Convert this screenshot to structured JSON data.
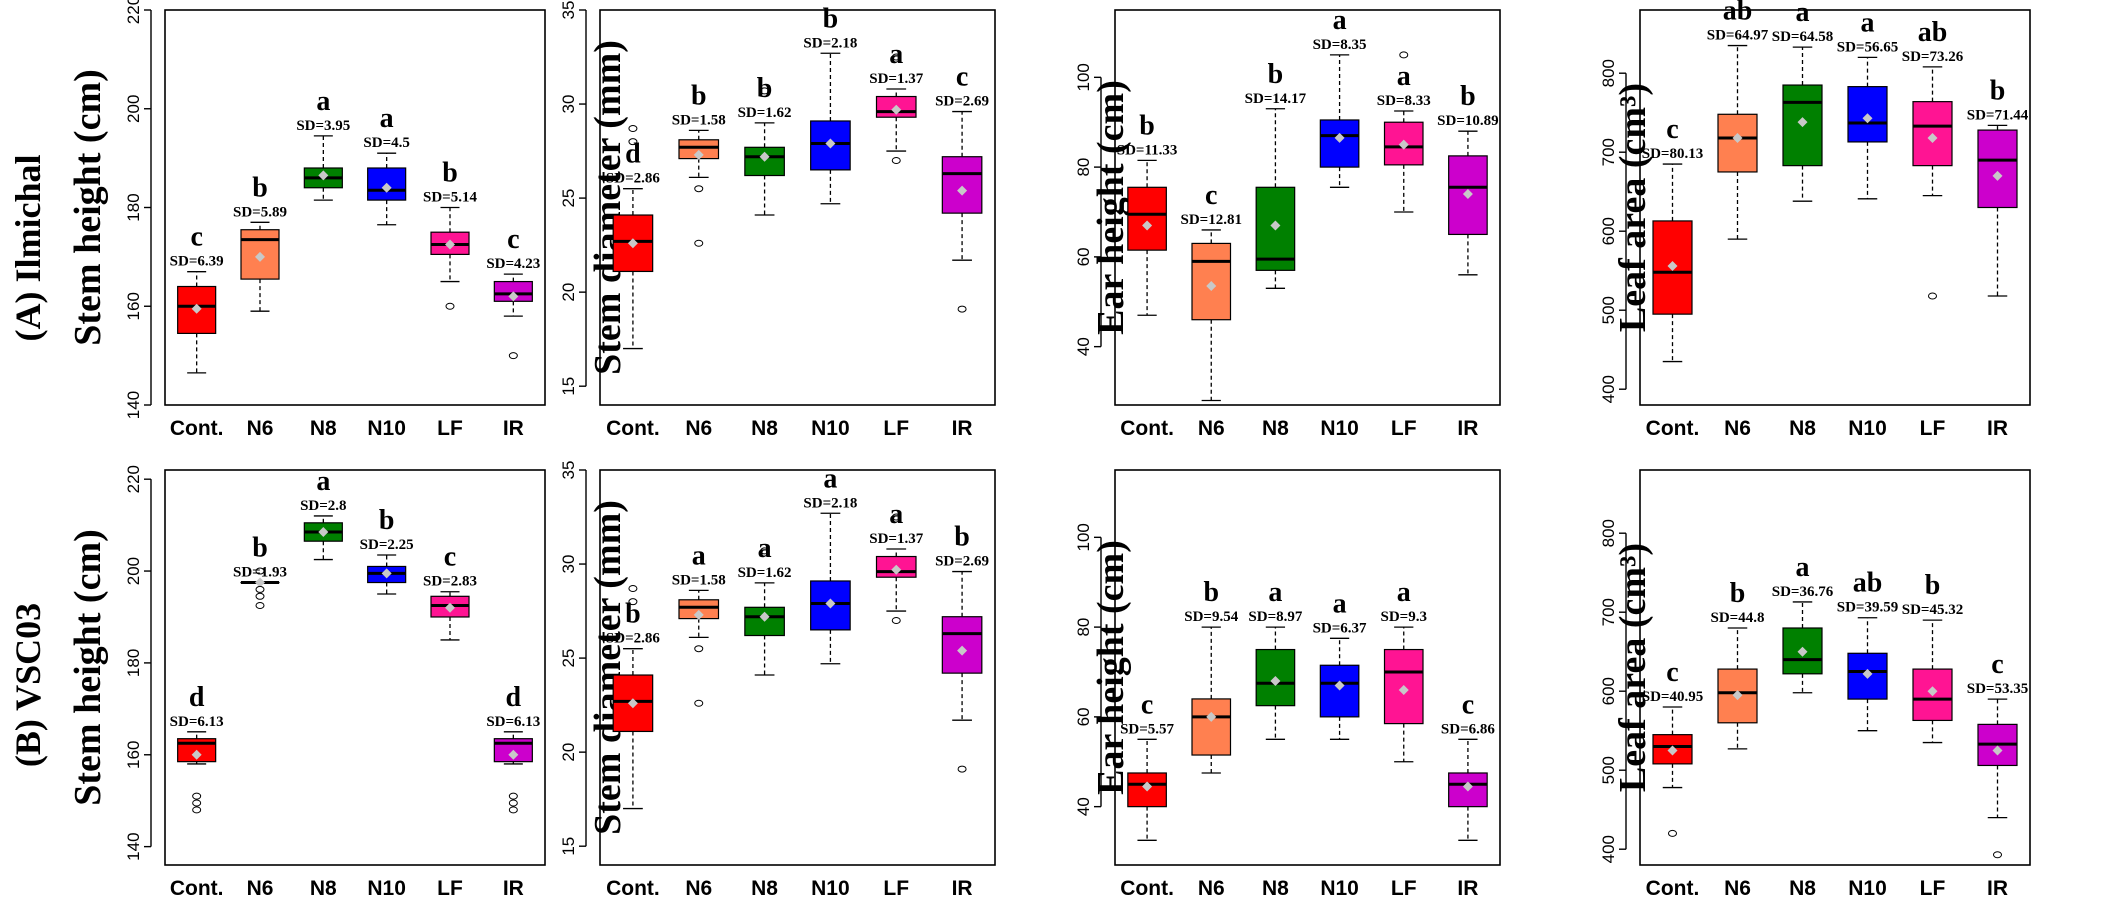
{
  "row_labels": [
    "(A) Ilmichal",
    "(B) VSC03"
  ],
  "colors": {
    "Cont.": "#ff0000",
    "N6": "#ff8050",
    "N8": "#008000",
    "N10": "#0000ff",
    "LF": "#ff1493",
    "IR": "#cc00cc",
    "mean": "#c8c8c8"
  },
  "chart_data": [
    {
      "type": "box",
      "title": "",
      "ylabel": "Stem height (cm)",
      "ylim": [
        140,
        220
      ],
      "yticks": [
        140,
        160,
        180,
        200,
        220
      ],
      "categories": [
        "Cont.",
        "N6",
        "N8",
        "N10",
        "LF",
        "IR"
      ],
      "boxes": [
        {
          "whislo": 146.5,
          "q1": 154.5,
          "med": 160,
          "q3": 164,
          "whishi": 167,
          "mean": 159.5,
          "fliers": [],
          "sd_label": "SD=6.39",
          "letter": "c"
        },
        {
          "whislo": 159,
          "q1": 165.5,
          "med": 173.5,
          "q3": 175.5,
          "whishi": 177,
          "mean": 170,
          "fliers": [],
          "sd_label": "SD=5.89",
          "letter": "b"
        },
        {
          "whislo": 181.5,
          "q1": 184,
          "med": 186,
          "q3": 188,
          "whishi": 194.5,
          "mean": 186.5,
          "fliers": [],
          "sd_label": "SD=3.95",
          "letter": "a"
        },
        {
          "whislo": 176.5,
          "q1": 181.5,
          "med": 183.5,
          "q3": 188,
          "whishi": 191,
          "mean": 184,
          "fliers": [],
          "sd_label": "SD=4.5",
          "letter": "a"
        },
        {
          "whislo": 165,
          "q1": 170.5,
          "med": 172.5,
          "q3": 175,
          "whishi": 180,
          "mean": 172.5,
          "fliers": [
            160
          ],
          "sd_label": "SD=5.14",
          "letter": "b"
        },
        {
          "whislo": 158,
          "q1": 161,
          "med": 162.5,
          "q3": 165,
          "whishi": 166.5,
          "mean": 162,
          "fliers": [
            150
          ],
          "sd_label": "SD=4.23",
          "letter": "c"
        }
      ]
    },
    {
      "type": "box",
      "title": "",
      "ylabel": "Stem diameter (mm)",
      "ylim": [
        14,
        35
      ],
      "yticks": [
        15,
        20,
        25,
        30,
        35
      ],
      "categories": [
        "Cont.",
        "N6",
        "N8",
        "N10",
        "LF",
        "IR"
      ],
      "boxes": [
        {
          "whislo": 17,
          "q1": 21.1,
          "med": 22.7,
          "q3": 24.1,
          "whishi": 25.5,
          "mean": 22.6,
          "fliers": [
            28,
            28.7
          ],
          "sd_label": "SD=2.86",
          "letter": "d"
        },
        {
          "whislo": 26.1,
          "q1": 27.1,
          "med": 27.7,
          "q3": 28.1,
          "whishi": 28.6,
          "mean": 27.3,
          "fliers": [
            22.6,
            25.5
          ],
          "sd_label": "SD=1.58",
          "letter": "b"
        },
        {
          "whislo": 24.1,
          "q1": 26.2,
          "med": 27.2,
          "q3": 27.7,
          "whishi": 29,
          "mean": 27.2,
          "fliers": [
            30.7
          ],
          "sd_label": "SD=1.62",
          "letter": "b"
        },
        {
          "whislo": 24.7,
          "q1": 26.5,
          "med": 27.9,
          "q3": 29.1,
          "whishi": 32.7,
          "mean": 27.9,
          "fliers": [],
          "sd_label": "SD=2.18",
          "letter": "b"
        },
        {
          "whislo": 27.5,
          "q1": 29.3,
          "med": 29.6,
          "q3": 30.4,
          "whishi": 30.8,
          "mean": 29.7,
          "fliers": [
            27,
            32.5
          ],
          "sd_label": "SD=1.37",
          "letter": "a"
        },
        {
          "whislo": 21.7,
          "q1": 24.2,
          "med": 26.3,
          "q3": 27.2,
          "whishi": 29.6,
          "mean": 25.4,
          "fliers": [
            19.1
          ],
          "sd_label": "SD=2.69",
          "letter": "c"
        }
      ]
    },
    {
      "type": "box",
      "title": "",
      "ylabel": "Ear height (cm)",
      "ylim": [
        27,
        115
      ],
      "yticks": [
        40,
        60,
        80,
        100
      ],
      "categories": [
        "Cont.",
        "N6",
        "N8",
        "N10",
        "LF",
        "IR"
      ],
      "boxes": [
        {
          "whislo": 47,
          "q1": 61.5,
          "med": 69.5,
          "q3": 75.5,
          "whishi": 81.5,
          "mean": 67,
          "fliers": [],
          "sd_label": "SD=11.33",
          "letter": "b"
        },
        {
          "whislo": 28,
          "q1": 46,
          "med": 59,
          "q3": 63,
          "whishi": 66,
          "mean": 53.5,
          "fliers": [],
          "sd_label": "SD=12.81",
          "letter": "c"
        },
        {
          "whislo": 53,
          "q1": 57,
          "med": 59.5,
          "q3": 75.5,
          "whishi": 93,
          "mean": 67,
          "fliers": [],
          "sd_label": "SD=14.17",
          "letter": "b"
        },
        {
          "whislo": 75.5,
          "q1": 80,
          "med": 87,
          "q3": 90.5,
          "whishi": 105,
          "mean": 86.5,
          "fliers": [],
          "sd_label": "SD=8.35",
          "letter": "a"
        },
        {
          "whislo": 70,
          "q1": 80.5,
          "med": 84.5,
          "q3": 90,
          "whishi": 92.5,
          "mean": 85,
          "fliers": [
            105
          ],
          "sd_label": "SD=8.33",
          "letter": "a"
        },
        {
          "whislo": 56,
          "q1": 65,
          "med": 75.5,
          "q3": 82.5,
          "whishi": 88,
          "mean": 74,
          "fliers": [],
          "sd_label": "SD=10.89",
          "letter": "b"
        }
      ]
    },
    {
      "type": "box",
      "title": "",
      "ylabel": "Leaf area (cm³)",
      "ylim": [
        380,
        880
      ],
      "yticks": [
        400,
        500,
        600,
        700,
        800
      ],
      "categories": [
        "Cont.",
        "N6",
        "N8",
        "N10",
        "LF",
        "IR"
      ],
      "boxes": [
        {
          "whislo": 435,
          "q1": 495,
          "med": 548,
          "q3": 613,
          "whishi": 685,
          "mean": 556,
          "fliers": [],
          "sd_label": "SD=80.13",
          "letter": "c"
        },
        {
          "whislo": 590,
          "q1": 675,
          "med": 718,
          "q3": 748,
          "whishi": 835,
          "mean": 718,
          "fliers": [],
          "sd_label": "SD=64.97",
          "letter": "ab"
        },
        {
          "whislo": 638,
          "q1": 683,
          "med": 763,
          "q3": 785,
          "whishi": 833,
          "mean": 738,
          "fliers": [],
          "sd_label": "SD=64.58",
          "letter": "a"
        },
        {
          "whislo": 641,
          "q1": 713,
          "med": 737,
          "q3": 783,
          "whishi": 820,
          "mean": 743,
          "fliers": [],
          "sd_label": "SD=56.65",
          "letter": "a"
        },
        {
          "whislo": 645,
          "q1": 683,
          "med": 733,
          "q3": 764,
          "whishi": 808,
          "mean": 718,
          "fliers": [
            518
          ],
          "sd_label": "SD=73.26",
          "letter": "ab"
        },
        {
          "whislo": 518,
          "q1": 630,
          "med": 690,
          "q3": 728,
          "whishi": 734,
          "mean": 670,
          "fliers": [],
          "sd_label": "SD=71.44",
          "letter": "b"
        }
      ]
    },
    {
      "type": "box",
      "title": "",
      "ylabel": "Stem height (cm)",
      "ylim": [
        136,
        222
      ],
      "yticks": [
        140,
        160,
        180,
        200,
        220
      ],
      "categories": [
        "Cont.",
        "N6",
        "N8",
        "N10",
        "LF",
        "IR"
      ],
      "boxes": [
        {
          "whislo": 158,
          "q1": 158.5,
          "med": 162.5,
          "q3": 163.5,
          "whishi": 165,
          "mean": 160,
          "fliers": [
            148,
            149.5,
            151
          ],
          "sd_label": "SD=6.13",
          "letter": "d"
        },
        {
          "whislo": 197.5,
          "q1": 197.5,
          "med": 197.5,
          "q3": 197.5,
          "whishi": 197.5,
          "mean": 197.5,
          "fliers": [
            192.5,
            194.5,
            196,
            200
          ],
          "sd_label": "SD=1.93",
          "letter": "b"
        },
        {
          "whislo": 202.5,
          "q1": 206.5,
          "med": 208.5,
          "q3": 210.5,
          "whishi": 212,
          "mean": 208.5,
          "fliers": [],
          "sd_label": "SD=2.8",
          "letter": "a"
        },
        {
          "whislo": 195,
          "q1": 197.5,
          "med": 199.5,
          "q3": 201,
          "whishi": 203.5,
          "mean": 199.5,
          "fliers": [],
          "sd_label": "SD=2.25",
          "letter": "b"
        },
        {
          "whislo": 185,
          "q1": 190,
          "med": 192.5,
          "q3": 194.5,
          "whishi": 195.5,
          "mean": 192,
          "fliers": [],
          "sd_label": "SD=2.83",
          "letter": "c"
        },
        {
          "whislo": 158,
          "q1": 158.5,
          "med": 162.5,
          "q3": 163.5,
          "whishi": 165,
          "mean": 160,
          "fliers": [
            148,
            149.5,
            151
          ],
          "sd_label": "SD=6.13",
          "letter": "d"
        }
      ]
    },
    {
      "type": "box",
      "title": "",
      "ylabel": "Stem diameter (mm)",
      "ylim": [
        14,
        35
      ],
      "yticks": [
        15,
        20,
        25,
        30,
        35
      ],
      "categories": [
        "Cont.",
        "N6",
        "N8",
        "N10",
        "LF",
        "IR"
      ],
      "boxes": [
        {
          "whislo": 17,
          "q1": 21.1,
          "med": 22.7,
          "q3": 24.1,
          "whishi": 25.5,
          "mean": 22.6,
          "fliers": [
            28,
            28.7
          ],
          "sd_label": "SD=2.86",
          "letter": "b"
        },
        {
          "whislo": 26.1,
          "q1": 27.1,
          "med": 27.7,
          "q3": 28.1,
          "whishi": 28.6,
          "mean": 27.3,
          "fliers": [
            22.6,
            25.5
          ],
          "sd_label": "SD=1.58",
          "letter": "a"
        },
        {
          "whislo": 24.1,
          "q1": 26.2,
          "med": 27.2,
          "q3": 27.7,
          "whishi": 29,
          "mean": 27.2,
          "fliers": [
            30.7
          ],
          "sd_label": "SD=1.62",
          "letter": "a"
        },
        {
          "whislo": 24.7,
          "q1": 26.5,
          "med": 27.9,
          "q3": 29.1,
          "whishi": 32.7,
          "mean": 27.9,
          "fliers": [],
          "sd_label": "SD=2.18",
          "letter": "a"
        },
        {
          "whislo": 27.5,
          "q1": 29.3,
          "med": 29.6,
          "q3": 30.4,
          "whishi": 30.8,
          "mean": 29.7,
          "fliers": [
            27,
            32.5
          ],
          "sd_label": "SD=1.37",
          "letter": "a"
        },
        {
          "whislo": 21.7,
          "q1": 24.2,
          "med": 26.3,
          "q3": 27.2,
          "whishi": 29.6,
          "mean": 25.4,
          "fliers": [
            19.1
          ],
          "sd_label": "SD=2.69",
          "letter": "b"
        }
      ]
    },
    {
      "type": "box",
      "title": "",
      "ylabel": "Ear height (cm)",
      "ylim": [
        27,
        115
      ],
      "yticks": [
        40,
        60,
        80,
        100
      ],
      "categories": [
        "Cont.",
        "N6",
        "N8",
        "N10",
        "LF",
        "IR"
      ],
      "boxes": [
        {
          "whislo": 32.5,
          "q1": 40,
          "med": 45,
          "q3": 47.5,
          "whishi": 55,
          "mean": 44.5,
          "fliers": [],
          "sd_label": "SD=5.57",
          "letter": "c"
        },
        {
          "whislo": 47.5,
          "q1": 51.5,
          "med": 60,
          "q3": 64,
          "whishi": 80,
          "mean": 60,
          "fliers": [],
          "sd_label": "SD=9.54",
          "letter": "b"
        },
        {
          "whislo": 55,
          "q1": 62.5,
          "med": 67.5,
          "q3": 75,
          "whishi": 80,
          "mean": 68,
          "fliers": [],
          "sd_label": "SD=8.97",
          "letter": "a"
        },
        {
          "whislo": 55,
          "q1": 60,
          "med": 67.5,
          "q3": 71.5,
          "whishi": 77.5,
          "mean": 67,
          "fliers": [],
          "sd_label": "SD=6.37",
          "letter": "a"
        },
        {
          "whislo": 50,
          "q1": 58.5,
          "med": 70,
          "q3": 75,
          "whishi": 80,
          "mean": 66,
          "fliers": [],
          "sd_label": "SD=9.3",
          "letter": "a"
        },
        {
          "whislo": 32.5,
          "q1": 40,
          "med": 45,
          "q3": 47.5,
          "whishi": 55,
          "mean": 44.5,
          "fliers": [],
          "sd_label": "SD=6.86",
          "letter": "c"
        }
      ]
    },
    {
      "type": "box",
      "title": "",
      "ylabel": "Leaf area (cm³)",
      "ylim": [
        380,
        880
      ],
      "yticks": [
        400,
        500,
        600,
        700,
        800
      ],
      "categories": [
        "Cont.",
        "N6",
        "N8",
        "N10",
        "LF",
        "IR"
      ],
      "boxes": [
        {
          "whislo": 478,
          "q1": 508,
          "med": 530,
          "q3": 545,
          "whishi": 580,
          "mean": 525,
          "fliers": [
            420
          ],
          "sd_label": "SD=40.95",
          "letter": "c"
        },
        {
          "whislo": 527,
          "q1": 560,
          "med": 598,
          "q3": 628,
          "whishi": 680,
          "mean": 595,
          "fliers": [],
          "sd_label": "SD=44.8",
          "letter": "b"
        },
        {
          "whislo": 598,
          "q1": 622,
          "med": 640,
          "q3": 680,
          "whishi": 713,
          "mean": 650,
          "fliers": [],
          "sd_label": "SD=36.76",
          "letter": "a"
        },
        {
          "whislo": 550,
          "q1": 590,
          "med": 625,
          "q3": 648,
          "whishi": 693,
          "mean": 622,
          "fliers": [],
          "sd_label": "SD=39.59",
          "letter": "ab"
        },
        {
          "whislo": 535,
          "q1": 563,
          "med": 590,
          "q3": 628,
          "whishi": 690,
          "mean": 600,
          "fliers": [],
          "sd_label": "SD=45.32",
          "letter": "b"
        },
        {
          "whislo": 440,
          "q1": 506,
          "med": 533,
          "q3": 558,
          "whishi": 590,
          "mean": 525,
          "fliers": [
            393
          ],
          "sd_label": "SD=53.35",
          "letter": "c"
        }
      ]
    }
  ]
}
